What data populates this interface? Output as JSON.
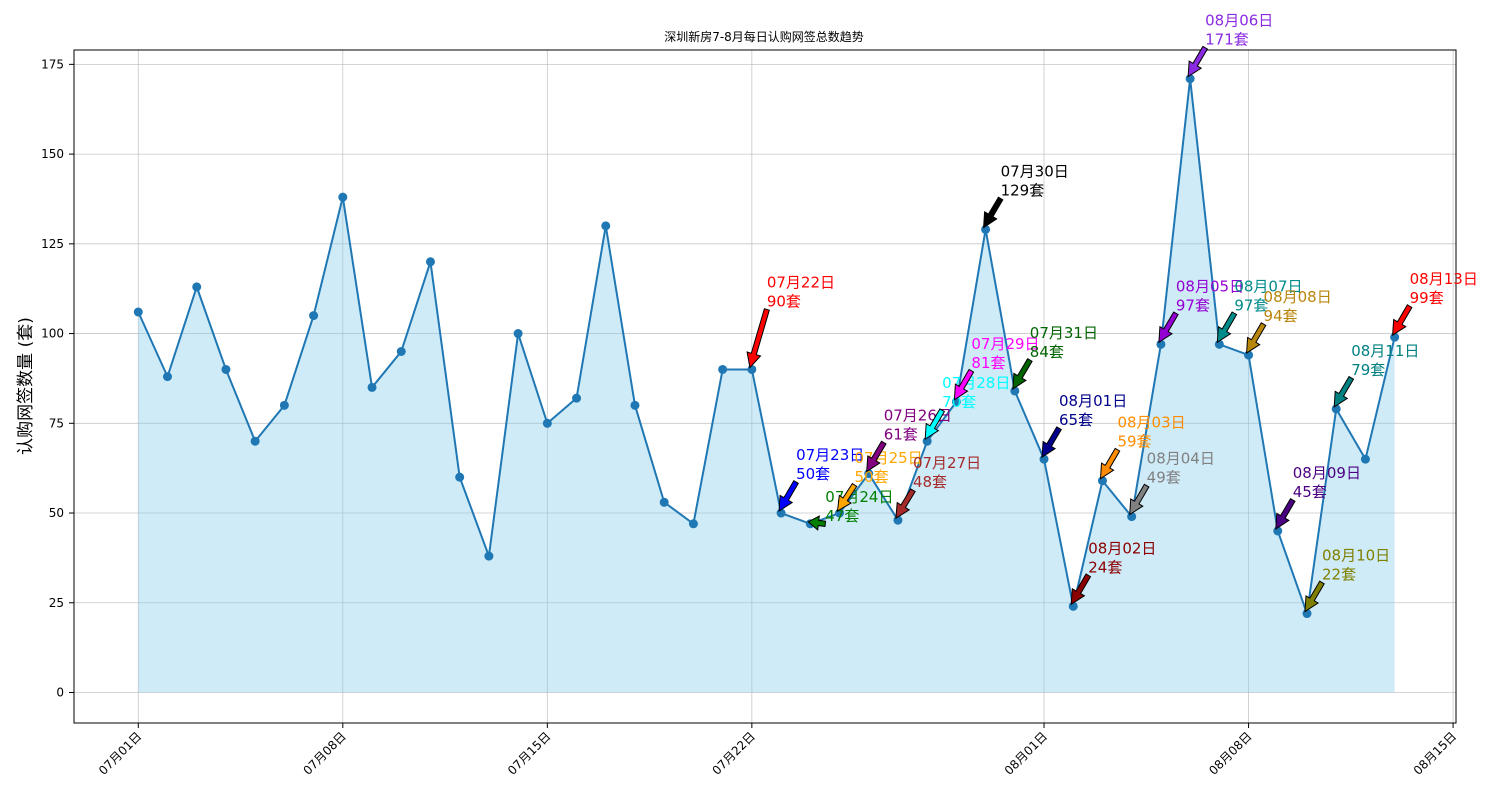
{
  "chart_data": {
    "type": "line",
    "title": "深圳新房7-8月每日认购网签总数趋势",
    "xlabel": "",
    "ylabel": "认购网签数量 (套)",
    "ylim": [
      -8.5,
      179
    ],
    "xlim_days": [
      -2.2,
      45.1
    ],
    "grid": true,
    "fill_color": "#87ceeb",
    "line_color": "#1f77b4",
    "x_ticks": [
      {
        "day": 0,
        "label": "07月01日"
      },
      {
        "day": 7,
        "label": "07月08日"
      },
      {
        "day": 14,
        "label": "07月15日"
      },
      {
        "day": 21,
        "label": "07月22日"
      },
      {
        "day": 31,
        "label": "08月01日"
      },
      {
        "day": 38,
        "label": "08月08日"
      },
      {
        "day": 45,
        "label": "08月15日"
      }
    ],
    "y_ticks": [
      0,
      25,
      50,
      75,
      100,
      125,
      150,
      175
    ],
    "dates": [
      "07-01",
      "07-02",
      "07-03",
      "07-04",
      "07-05",
      "07-06",
      "07-07",
      "07-08",
      "07-09",
      "07-10",
      "07-11",
      "07-12",
      "07-13",
      "07-14",
      "07-15",
      "07-16",
      "07-17",
      "07-18",
      "07-19",
      "07-20",
      "07-21",
      "07-22",
      "07-23",
      "07-24",
      "07-25",
      "07-26",
      "07-27",
      "07-28",
      "07-29",
      "07-30",
      "07-31",
      "08-01",
      "08-02",
      "08-03",
      "08-04",
      "08-05",
      "08-06",
      "08-07",
      "08-08",
      "08-09",
      "08-10",
      "08-11",
      "08-12",
      "08-13"
    ],
    "values": [
      106,
      88,
      113,
      90,
      70,
      80,
      105,
      138,
      85,
      95,
      120,
      60,
      38,
      100,
      75,
      82,
      130,
      80,
      53,
      47,
      90,
      90,
      50,
      47,
      50,
      61,
      48,
      70,
      81,
      129,
      84,
      65,
      24,
      59,
      49,
      97,
      171,
      97,
      94,
      45,
      22,
      79,
      65,
      99
    ],
    "annotations": [
      {
        "day": 21,
        "value": 90,
        "date_label": "07月22日",
        "count_label": "90套",
        "color": "#ff0000",
        "off_x": 15,
        "off_y": -96
      },
      {
        "day": 22,
        "value": 50,
        "date_label": "07月23日",
        "count_label": "50套",
        "color": "#0000ff",
        "off_x": 15,
        "off_y": -67
      },
      {
        "day": 23,
        "value": 47,
        "date_label": "07月24日",
        "count_label": "47套",
        "color": "#008000",
        "off_x": 15,
        "off_y": -36
      },
      {
        "day": 24,
        "value": 50,
        "date_label": "07月25日",
        "count_label": "50套",
        "color": "#ffa500",
        "off_x": 15,
        "off_y": -64
      },
      {
        "day": 25,
        "value": 61,
        "date_label": "07月26日",
        "count_label": "61套",
        "color": "#800080",
        "off_x": 15,
        "off_y": -67
      },
      {
        "day": 26,
        "value": 48,
        "date_label": "07月27日",
        "count_label": "48套",
        "color": "#a52a2a",
        "off_x": 15,
        "off_y": -66
      },
      {
        "day": 27,
        "value": 70,
        "date_label": "07月28日",
        "count_label": "70套",
        "color": "#00ffff",
        "off_x": 15,
        "off_y": -67
      },
      {
        "day": 28,
        "value": 81,
        "date_label": "07月29日",
        "count_label": "81套",
        "color": "#ff00ff",
        "off_x": 15,
        "off_y": -67
      },
      {
        "day": 29,
        "value": 129,
        "date_label": "07月30日",
        "count_label": "129套",
        "color": "#000000",
        "off_x": 15,
        "off_y": -67
      },
      {
        "day": 30,
        "value": 84,
        "date_label": "07月31日",
        "count_label": "84套",
        "color": "#006400",
        "off_x": 15,
        "off_y": -67
      },
      {
        "day": 31,
        "value": 65,
        "date_label": "08月01日",
        "count_label": "65套",
        "color": "#00008b",
        "off_x": 15,
        "off_y": -67
      },
      {
        "day": 32,
        "value": 24,
        "date_label": "08月02日",
        "count_label": "24套",
        "color": "#8b0000",
        "off_x": 15,
        "off_y": -67
      },
      {
        "day": 33,
        "value": 59,
        "date_label": "08月03日",
        "count_label": "59套",
        "color": "#ff8c00",
        "off_x": 15,
        "off_y": -67
      },
      {
        "day": 34,
        "value": 49,
        "date_label": "08月04日",
        "count_label": "49套",
        "color": "#808080",
        "off_x": 15,
        "off_y": -67
      },
      {
        "day": 35,
        "value": 97,
        "date_label": "08月05日",
        "count_label": "97套",
        "color": "#9400d3",
        "off_x": 15,
        "off_y": -67
      },
      {
        "day": 36,
        "value": 171,
        "date_label": "08月06日",
        "count_label": "171套",
        "color": "#8a2be2",
        "off_x": 15,
        "off_y": -67
      },
      {
        "day": 37,
        "value": 97,
        "date_label": "08月07日",
        "count_label": "97套",
        "color": "#008b8b",
        "off_x": 15,
        "off_y": -67
      },
      {
        "day": 38,
        "value": 94,
        "date_label": "08月08日",
        "count_label": "94套",
        "color": "#b8860b",
        "off_x": 15,
        "off_y": -67
      },
      {
        "day": 39,
        "value": 45,
        "date_label": "08月09日",
        "count_label": "45套",
        "color": "#4b0082",
        "off_x": 15,
        "off_y": -67
      },
      {
        "day": 40,
        "value": 22,
        "date_label": "08月10日",
        "count_label": "22套",
        "color": "#808000",
        "off_x": 15,
        "off_y": -67
      },
      {
        "day": 41,
        "value": 79,
        "date_label": "08月11日",
        "count_label": "79套",
        "color": "#008080",
        "off_x": 15,
        "off_y": -67
      },
      {
        "day": 43,
        "value": 99,
        "date_label": "08月13日",
        "count_label": "99套",
        "color": "#ff0000",
        "off_x": 15,
        "off_y": -67
      }
    ]
  }
}
